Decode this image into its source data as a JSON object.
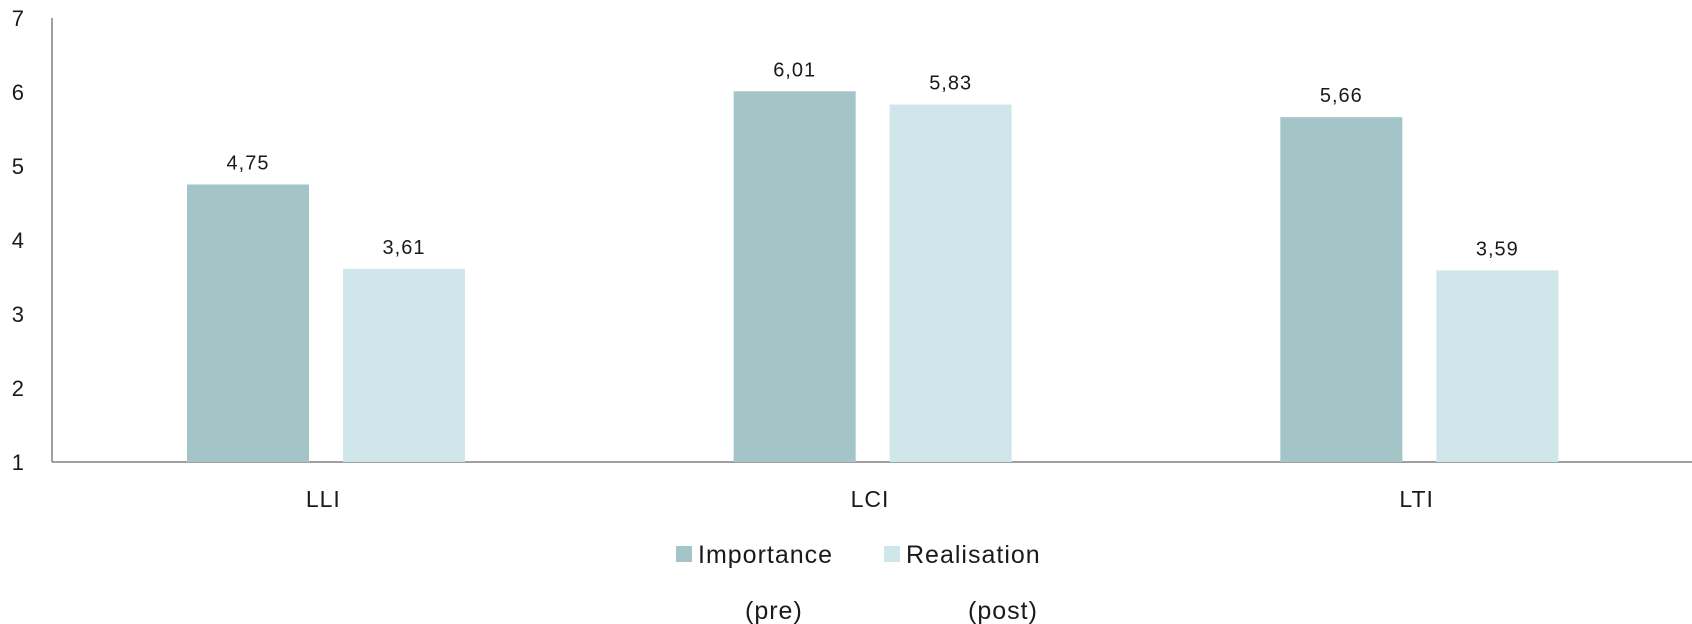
{
  "chart_data": {
    "type": "bar",
    "categories": [
      "LLI",
      "LCI",
      "LTI"
    ],
    "series": [
      {
        "name": "Importance",
        "sublabel": "(pre)",
        "values": [
          4.75,
          6.01,
          5.66
        ],
        "value_labels": [
          "4,75",
          "6,01",
          "5,66"
        ],
        "color": "#a4c5c7"
      },
      {
        "name": "Realisation",
        "sublabel": "(post)",
        "values": [
          3.61,
          5.83,
          3.59
        ],
        "value_labels": [
          "3,61",
          "5,83",
          "3,59"
        ],
        "color": "#cfe7eb"
      }
    ],
    "ylim": [
      1,
      7
    ],
    "yticks": [
      "1",
      "2",
      "3",
      "4",
      "5",
      "6",
      "7"
    ],
    "grid": false,
    "legend_position": "bottom",
    "axis_color": "#808080"
  }
}
